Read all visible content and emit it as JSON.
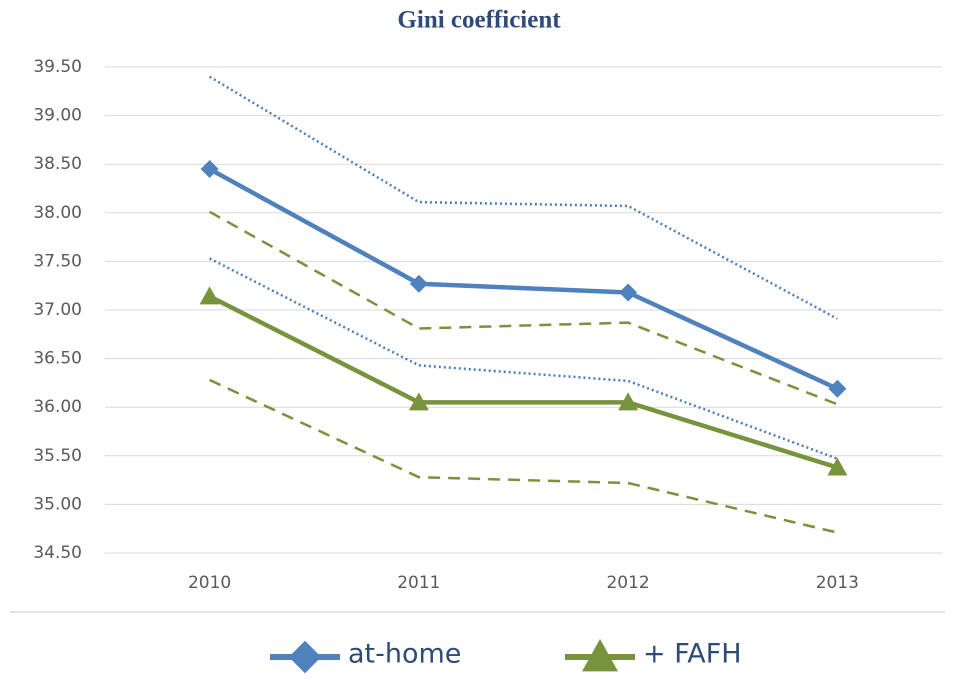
{
  "chart_data": {
    "type": "line",
    "title": "Gini coefficient",
    "categories": [
      "2010",
      "2011",
      "2012",
      "2013"
    ],
    "series": [
      {
        "values": [
          39.4,
          38.11,
          38.07,
          36.91
        ],
        "color": "#4a7ebb",
        "dash": "dotted"
      },
      {
        "values": [
          37.53,
          36.43,
          36.27,
          35.47
        ],
        "color": "#4a7ebb",
        "dash": "dotted"
      },
      {
        "values": [
          38.01,
          36.81,
          36.87,
          36.03
        ],
        "color": "#77933c",
        "dash": "dashed"
      },
      {
        "values": [
          36.28,
          35.28,
          35.22,
          34.71
        ],
        "color": "#77933c",
        "dash": "dashed"
      },
      {
        "name": "at-home",
        "values": [
          38.45,
          37.27,
          37.18,
          36.19
        ],
        "color": "#4f81bd",
        "marker": "diamond"
      },
      {
        "name": "+ FAFH",
        "values": [
          37.14,
          36.05,
          36.05,
          35.38
        ],
        "color": "#77933c",
        "marker": "triangle"
      }
    ],
    "ylim": [
      34.5,
      39.5
    ],
    "yticks": [
      {
        "value": 34.5,
        "label": "34.50"
      },
      {
        "value": 35,
        "label": "35.00"
      },
      {
        "value": 35.5,
        "label": "35.50"
      },
      {
        "value": 36,
        "label": "36.00"
      },
      {
        "value": 36.5,
        "label": "36.50"
      },
      {
        "value": 37,
        "label": "37.00"
      },
      {
        "value": 37.5,
        "label": "37.50"
      },
      {
        "value": 38,
        "label": "38.00"
      },
      {
        "value": 38.5,
        "label": "38.50"
      },
      {
        "value": 39,
        "label": "39.00"
      },
      {
        "value": 39.5,
        "label": "39.50"
      }
    ],
    "grid": true,
    "legend": "bottom"
  }
}
